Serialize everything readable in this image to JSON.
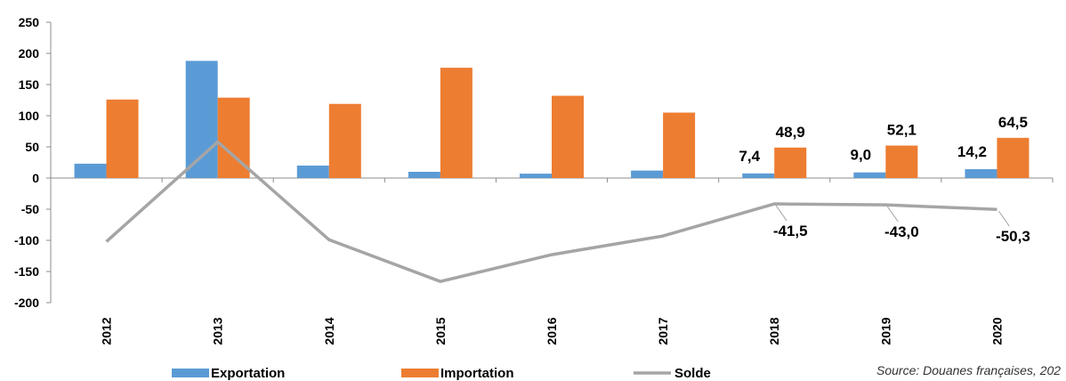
{
  "chart_data": {
    "type": "bar",
    "categories": [
      "2012",
      "2013",
      "2014",
      "2015",
      "2016",
      "2017",
      "2018",
      "2019",
      "2020"
    ],
    "series": [
      {
        "name": "Exportation",
        "type": "bar",
        "color": "#5B9BD5",
        "values": [
          23,
          188,
          20,
          10,
          7,
          12,
          7.4,
          9.0,
          14.2
        ]
      },
      {
        "name": "Importation",
        "type": "bar",
        "color": "#ED7D31",
        "values": [
          126,
          129,
          119,
          177,
          132,
          105,
          48.9,
          52.1,
          64.5
        ]
      },
      {
        "name": "Solde",
        "type": "line",
        "color": "#A5A5A5",
        "values": [
          -102,
          58,
          -99,
          -166,
          -123,
          -93,
          -41.5,
          -43.0,
          -50.3
        ]
      }
    ],
    "y_ticks": [
      "250",
      "200",
      "150",
      "100",
      "50",
      "0",
      "-50",
      "-100",
      "-150",
      "-200"
    ],
    "ylim": [
      -200,
      250
    ],
    "data_labels": {
      "Exportation": [
        "",
        "",
        "",
        "",
        "",
        "",
        "7,4",
        "9,0",
        "14,2"
      ],
      "Importation": [
        "",
        "",
        "",
        "",
        "",
        "",
        "48,9",
        "52,1",
        "64,5"
      ],
      "Solde": [
        "",
        "",
        "",
        "",
        "",
        "",
        "-41,5",
        "-43,0",
        "-50,3"
      ]
    },
    "grid": false,
    "legend_position": "bottom",
    "source": "Source: Douanes françaises, 202"
  }
}
